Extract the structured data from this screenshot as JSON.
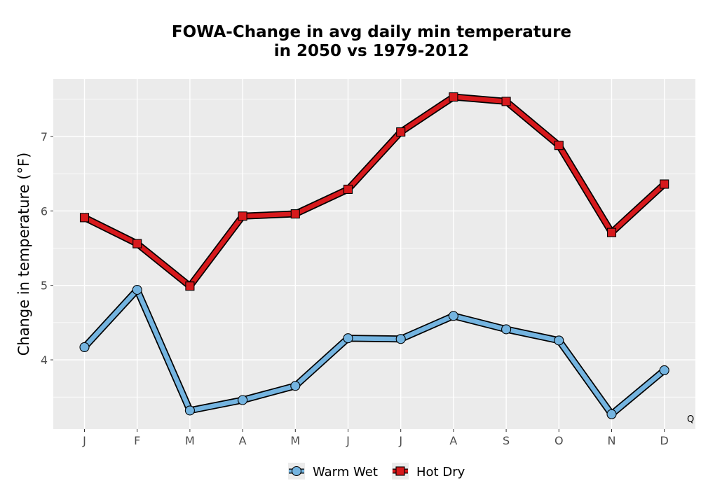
{
  "chart_data": {
    "type": "line",
    "title_line1": "FOWA-Change in avg daily min temperature",
    "title_line2": "in 2050 vs 1979-2012",
    "xlabel": "",
    "ylabel": "Change in temperature (°F)",
    "categories": [
      "J",
      "F",
      "M",
      "A",
      "M",
      "J",
      "J",
      "A",
      "S",
      "O",
      "N",
      "D"
    ],
    "ylim": [
      3.07,
      7.77
    ],
    "yticks": [
      4,
      5,
      6,
      7
    ],
    "grid": true,
    "legend_position": "bottom",
    "corner_note": "Q",
    "series": [
      {
        "name": "Warm Wet",
        "marker": "circle",
        "color": "#74b4e0",
        "values": [
          4.17,
          4.94,
          3.32,
          3.46,
          3.65,
          4.29,
          4.28,
          4.59,
          4.41,
          4.26,
          3.27,
          3.86
        ]
      },
      {
        "name": "Hot Dry",
        "marker": "square",
        "color": "#d7191c",
        "values": [
          5.91,
          5.56,
          4.99,
          5.93,
          5.96,
          6.29,
          7.06,
          7.53,
          7.47,
          6.88,
          5.71,
          6.36
        ]
      }
    ]
  }
}
